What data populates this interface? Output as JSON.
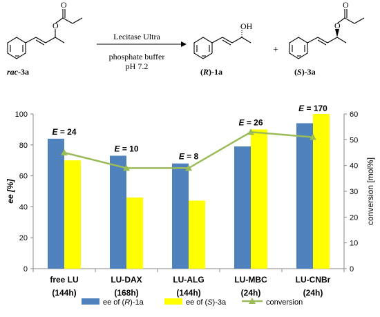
{
  "scheme": {
    "substrate_label": "rac-3a",
    "substrate_prefix": "rac",
    "substrate_suffix": "-3a",
    "reagent": "Lecitase Ultra",
    "conditions_line1": "phosphate buffer",
    "conditions_line2": "pH 7.2",
    "product1_label": "(R)-1a",
    "product1_config": "R",
    "product1_suffix": "-1a",
    "product1_oh": "OH",
    "plus": "+",
    "product2_label": "(S)-3a",
    "product2_config": "S",
    "product2_suffix": "-3a",
    "atom_O": "O"
  },
  "chart_data": {
    "type": "bar",
    "categories": [
      "free LU\n(144h)",
      "LU-DAX\n(168h)",
      "LU-ALG\n(144h)",
      "LU-MBC\n(24h)",
      "LU-CNBr\n(24h)"
    ],
    "category_lines": [
      [
        "free LU",
        "(144h)"
      ],
      [
        "LU-DAX",
        "(168h)"
      ],
      [
        "LU-ALG",
        "(144h)"
      ],
      [
        "LU-MBC",
        "(24h)"
      ],
      [
        "LU-CNBr",
        "(24h)"
      ]
    ],
    "series": [
      {
        "name": "ee of (R)-1a",
        "name_parts": [
          "ee of (",
          "R",
          ")-1a"
        ],
        "values": [
          84,
          73,
          68,
          79,
          94
        ],
        "color": "#4f81bd",
        "kind": "bar"
      },
      {
        "name": "ee of (S)-3a",
        "name_parts": [
          "ee of (",
          "S",
          ")-3a"
        ],
        "values": [
          70,
          46,
          44,
          90,
          100
        ],
        "color": "#ffff00",
        "kind": "bar"
      },
      {
        "name": "conversion",
        "values": [
          45,
          39,
          39,
          53,
          51
        ],
        "color": "#9bbb59",
        "kind": "line",
        "axis": "right"
      }
    ],
    "annotations": [
      "E = 24",
      "E = 10",
      "E = 8",
      "E = 26",
      "E = 170"
    ],
    "ylabel": "ee [%]",
    "ylim": [
      0,
      100
    ],
    "yticks": [
      0,
      20,
      40,
      60,
      80,
      100
    ],
    "y2label": "conversion [mol%]",
    "y2lim": [
      0,
      60
    ],
    "y2ticks": [
      0,
      10,
      20,
      30,
      40,
      50,
      60
    ],
    "grid": false,
    "legend_position": "bottom"
  }
}
